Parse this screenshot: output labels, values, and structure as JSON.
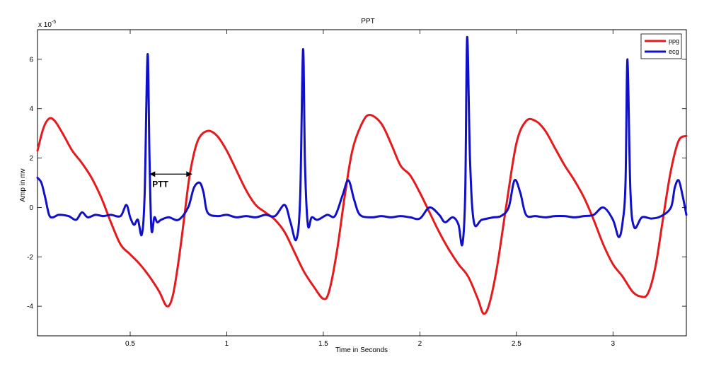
{
  "chart_data": {
    "type": "line",
    "title": "PPT",
    "xlabel": "Time in Seconds",
    "ylabel": "Amp in mv",
    "y_exponent_label": "x 10",
    "y_exponent_power": "-5",
    "xlim": [
      0.02,
      3.38
    ],
    "ylim": [
      -5.2,
      7.2
    ],
    "x_ticks": [
      0.5,
      1,
      1.5,
      2,
      2.5,
      3
    ],
    "x_tick_labels": [
      "0.5",
      "1",
      "1.5",
      "2",
      "2.5",
      "3"
    ],
    "y_ticks": [
      -4,
      -2,
      0,
      2,
      4,
      6
    ],
    "y_tick_labels": [
      "-4",
      "-2",
      "0",
      "2",
      "4",
      "6"
    ],
    "grid": false,
    "legend_position": "top-right",
    "series": [
      {
        "name": "ppg",
        "color": "#e41a1c",
        "x": [
          0.02,
          0.05,
          0.08,
          0.11,
          0.15,
          0.2,
          0.25,
          0.3,
          0.35,
          0.4,
          0.45,
          0.5,
          0.55,
          0.6,
          0.65,
          0.69,
          0.72,
          0.75,
          0.78,
          0.81,
          0.85,
          0.9,
          0.95,
          1.0,
          1.05,
          1.1,
          1.15,
          1.2,
          1.25,
          1.3,
          1.35,
          1.4,
          1.45,
          1.5,
          1.53,
          1.57,
          1.61,
          1.65,
          1.7,
          1.74,
          1.8,
          1.85,
          1.9,
          1.95,
          2.0,
          2.05,
          2.1,
          2.15,
          2.2,
          2.25,
          2.3,
          2.33,
          2.36,
          2.4,
          2.45,
          2.5,
          2.55,
          2.6,
          2.65,
          2.7,
          2.75,
          2.8,
          2.85,
          2.9,
          2.95,
          3.0,
          3.05,
          3.1,
          3.14,
          3.18,
          3.22,
          3.26,
          3.3,
          3.34,
          3.38
        ],
        "y": [
          2.3,
          3.2,
          3.6,
          3.5,
          3.0,
          2.3,
          1.8,
          1.2,
          0.4,
          -0.6,
          -1.5,
          -1.9,
          -2.3,
          -2.8,
          -3.4,
          -4.0,
          -3.6,
          -2.2,
          -0.4,
          1.4,
          2.7,
          3.1,
          2.9,
          2.3,
          1.5,
          0.7,
          0.1,
          -0.2,
          -0.5,
          -1.0,
          -1.8,
          -2.6,
          -3.2,
          -3.7,
          -3.4,
          -1.8,
          0.4,
          2.3,
          3.4,
          3.75,
          3.4,
          2.6,
          1.7,
          1.3,
          0.6,
          -0.2,
          -1.0,
          -1.7,
          -2.3,
          -2.8,
          -3.7,
          -4.3,
          -3.9,
          -2.4,
          0.2,
          2.6,
          3.5,
          3.5,
          3.1,
          2.4,
          1.7,
          1.1,
          0.4,
          -0.5,
          -1.5,
          -2.3,
          -2.8,
          -3.4,
          -3.6,
          -3.5,
          -2.4,
          -0.4,
          1.5,
          2.7,
          2.9
        ]
      },
      {
        "name": "ecg",
        "color": "#1010c8",
        "x": [
          0.02,
          0.04,
          0.06,
          0.08,
          0.1,
          0.13,
          0.18,
          0.22,
          0.25,
          0.28,
          0.32,
          0.36,
          0.4,
          0.45,
          0.48,
          0.5,
          0.52,
          0.54,
          0.56,
          0.575,
          0.59,
          0.6,
          0.61,
          0.625,
          0.64,
          0.66,
          0.7,
          0.75,
          0.8,
          0.83,
          0.86,
          0.88,
          0.9,
          0.95,
          1.0,
          1.05,
          1.1,
          1.15,
          1.2,
          1.25,
          1.3,
          1.33,
          1.36,
          1.38,
          1.395,
          1.405,
          1.42,
          1.44,
          1.47,
          1.52,
          1.56,
          1.6,
          1.63,
          1.66,
          1.69,
          1.75,
          1.8,
          1.85,
          1.9,
          1.95,
          2.0,
          2.05,
          2.1,
          2.13,
          2.17,
          2.2,
          2.22,
          2.235,
          2.245,
          2.26,
          2.28,
          2.32,
          2.38,
          2.42,
          2.46,
          2.49,
          2.52,
          2.55,
          2.6,
          2.65,
          2.7,
          2.75,
          2.8,
          2.85,
          2.9,
          2.95,
          3.0,
          3.03,
          3.05,
          3.065,
          3.075,
          3.09,
          3.11,
          3.15,
          3.2,
          3.25,
          3.3,
          3.32,
          3.34,
          3.36,
          3.38
        ],
        "y": [
          1.2,
          1.0,
          0.4,
          -0.3,
          -0.4,
          -0.3,
          -0.35,
          -0.5,
          -0.2,
          -0.4,
          -0.3,
          -0.35,
          -0.3,
          -0.35,
          0.1,
          -0.4,
          -0.7,
          -0.5,
          -1.1,
          0.6,
          6.2,
          2.0,
          -0.9,
          -0.4,
          -0.6,
          -0.5,
          -0.4,
          -0.5,
          0.0,
          0.8,
          1.0,
          0.6,
          -0.2,
          -0.35,
          -0.3,
          -0.4,
          -0.35,
          -0.4,
          -0.3,
          -0.35,
          0.1,
          -0.6,
          -1.3,
          0.4,
          6.4,
          1.8,
          -0.7,
          -0.4,
          -0.5,
          -0.3,
          -0.35,
          0.5,
          1.1,
          0.3,
          -0.3,
          -0.4,
          -0.35,
          -0.4,
          -0.35,
          -0.4,
          -0.45,
          0.0,
          -0.3,
          -0.6,
          -0.4,
          -0.7,
          -1.5,
          0.6,
          6.9,
          1.9,
          -0.6,
          -0.5,
          -0.4,
          -0.35,
          0.0,
          1.1,
          0.6,
          -0.3,
          -0.35,
          -0.4,
          -0.35,
          -0.35,
          -0.4,
          -0.35,
          -0.3,
          0.0,
          -0.5,
          -1.2,
          -0.6,
          1.0,
          6.0,
          0.7,
          -0.8,
          -0.4,
          -0.45,
          -0.35,
          0.0,
          0.8,
          1.1,
          0.5,
          -0.3
        ]
      }
    ],
    "annotation": {
      "text": "PTT",
      "x_start": 0.6,
      "x_end": 0.82,
      "y": 1.35
    }
  }
}
